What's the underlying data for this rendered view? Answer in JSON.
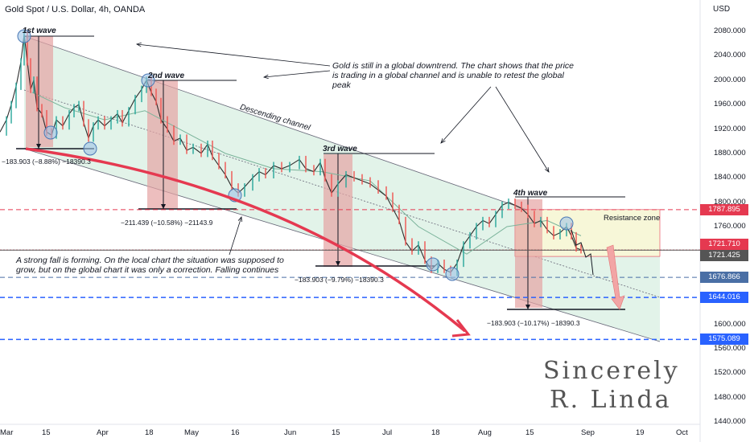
{
  "header": {
    "title": "Gold Spot / U.S. Dollar, 4h, OANDA",
    "currency": "USD"
  },
  "chart_data": {
    "type": "line",
    "series_name": "XAUUSD 4h",
    "yaxis": {
      "ticks": [
        1440,
        1480,
        1520,
        1560,
        1600,
        1640,
        1680,
        1720,
        1760,
        1800,
        1840,
        1880,
        1920,
        1960,
        2000,
        2040,
        2080
      ],
      "tick_labels": [
        "1440.000",
        "1480.000",
        "1520.000",
        "1560.000",
        "1600.000",
        "1640.000",
        "1680.000",
        "1720.000",
        "1760.000",
        "1800.000",
        "1840.000",
        "1880.000",
        "1920.000",
        "1960.000",
        "2000.000",
        "2040.000",
        "2080.000"
      ],
      "range": [
        1430,
        2100
      ]
    },
    "xaxis": {
      "ticks": [
        "Mar",
        "15",
        "Apr",
        "18",
        "May",
        "16",
        "Jun",
        "15",
        "Jul",
        "18",
        "Aug",
        "15",
        "Sep",
        "19",
        "Oct"
      ]
    },
    "price": [
      [
        0,
        1915
      ],
      [
        8,
        1935
      ],
      [
        14,
        1960
      ],
      [
        20,
        1990
      ],
      [
        26,
        2030
      ],
      [
        30,
        2075
      ],
      [
        34,
        2030
      ],
      [
        38,
        1985
      ],
      [
        42,
        2000
      ],
      [
        46,
        1955
      ],
      [
        52,
        1945
      ],
      [
        58,
        1915
      ],
      [
        64,
        1910
      ],
      [
        70,
        1935
      ],
      [
        78,
        1925
      ],
      [
        86,
        1945
      ],
      [
        92,
        1955
      ],
      [
        98,
        1960
      ],
      [
        104,
        1930
      ],
      [
        110,
        1905
      ],
      [
        116,
        1925
      ],
      [
        122,
        1935
      ],
      [
        130,
        1925
      ],
      [
        138,
        1935
      ],
      [
        146,
        1945
      ],
      [
        152,
        1930
      ],
      [
        160,
        1950
      ],
      [
        168,
        1970
      ],
      [
        176,
        1985
      ],
      [
        182,
        2000
      ],
      [
        188,
        1980
      ],
      [
        194,
        1965
      ],
      [
        200,
        1935
      ],
      [
        208,
        1920
      ],
      [
        216,
        1900
      ],
      [
        224,
        1905
      ],
      [
        232,
        1885
      ],
      [
        240,
        1890
      ],
      [
        250,
        1880
      ],
      [
        258,
        1895
      ],
      [
        264,
        1875
      ],
      [
        272,
        1860
      ],
      [
        280,
        1845
      ],
      [
        288,
        1825
      ],
      [
        296,
        1815
      ],
      [
        304,
        1825
      ],
      [
        314,
        1840
      ],
      [
        322,
        1850
      ],
      [
        330,
        1845
      ],
      [
        340,
        1860
      ],
      [
        350,
        1855
      ],
      [
        360,
        1860
      ],
      [
        372,
        1870
      ],
      [
        380,
        1855
      ],
      [
        390,
        1850
      ],
      [
        398,
        1865
      ],
      [
        404,
        1840
      ],
      [
        412,
        1815
      ],
      [
        420,
        1830
      ],
      [
        430,
        1845
      ],
      [
        440,
        1840
      ],
      [
        450,
        1835
      ],
      [
        460,
        1830
      ],
      [
        470,
        1820
      ],
      [
        480,
        1810
      ],
      [
        488,
        1790
      ],
      [
        496,
        1770
      ],
      [
        504,
        1735
      ],
      [
        512,
        1720
      ],
      [
        520,
        1730
      ],
      [
        528,
        1705
      ],
      [
        536,
        1690
      ],
      [
        544,
        1700
      ],
      [
        552,
        1690
      ],
      [
        560,
        1685
      ],
      [
        568,
        1700
      ],
      [
        576,
        1730
      ],
      [
        584,
        1745
      ],
      [
        592,
        1760
      ],
      [
        600,
        1770
      ],
      [
        608,
        1765
      ],
      [
        616,
        1780
      ],
      [
        624,
        1795
      ],
      [
        632,
        1800
      ],
      [
        640,
        1795
      ],
      [
        648,
        1790
      ],
      [
        656,
        1780
      ],
      [
        664,
        1765
      ],
      [
        672,
        1770
      ],
      [
        680,
        1755
      ],
      [
        688,
        1745
      ],
      [
        696,
        1750
      ],
      [
        704,
        1760
      ],
      [
        710,
        1745
      ],
      [
        716,
        1725
      ],
      [
        722,
        1722
      ]
    ],
    "levels": [
      {
        "price": 1787.895,
        "label": "1787.895",
        "color": "#e53950",
        "style": "dashed"
      },
      {
        "price": 1721.71,
        "label": "1721.710",
        "color": "#e53950",
        "style": "dotted"
      },
      {
        "price": 1721.425,
        "label": "1721.425",
        "color": "#555555",
        "style": "solid"
      },
      {
        "price": 1676.866,
        "label": "1676.866",
        "color": "#4a6fa5",
        "style": "dashed"
      },
      {
        "price": 1644.016,
        "label": "1644.016",
        "color": "#2962ff",
        "style": "dashed"
      },
      {
        "price": 1575.089,
        "label": "1575.089",
        "color": "#2962ff",
        "style": "dashed"
      }
    ],
    "waves": [
      {
        "label": "1st wave",
        "measure": "−183.903 (−8.88%) −18390.3"
      },
      {
        "label": "2nd wave",
        "measure": "−211.439 (−10.58%) −21143.9"
      },
      {
        "label": "3rd wave",
        "measure": "−183.903 (−9.79%) −18390.3"
      },
      {
        "label": "4th wave",
        "measure": "−183.903 (−10.17%) −18390.3"
      }
    ],
    "annotations": {
      "global": "Gold is still in a global downtrend. The chart shows that the price is trading in a global channel and is unable to retest the global peak",
      "channel": "Descending channel",
      "strong_fall": "A strong fall is forming. On the local chart the situation was supposed to grow, but on the global chart it was only a correction. Falling continues",
      "resistance": "Resistance zone",
      "signature_line1": "Sincerely",
      "signature_line2": "R. Linda"
    }
  },
  "colors": {
    "up": "#26a69a",
    "down": "#ef5350",
    "channel_fill": "#d8efe1",
    "wave_box": "#e6a3a3",
    "resistance_fill": "#f7f7d8",
    "arrow": "#e53950"
  }
}
